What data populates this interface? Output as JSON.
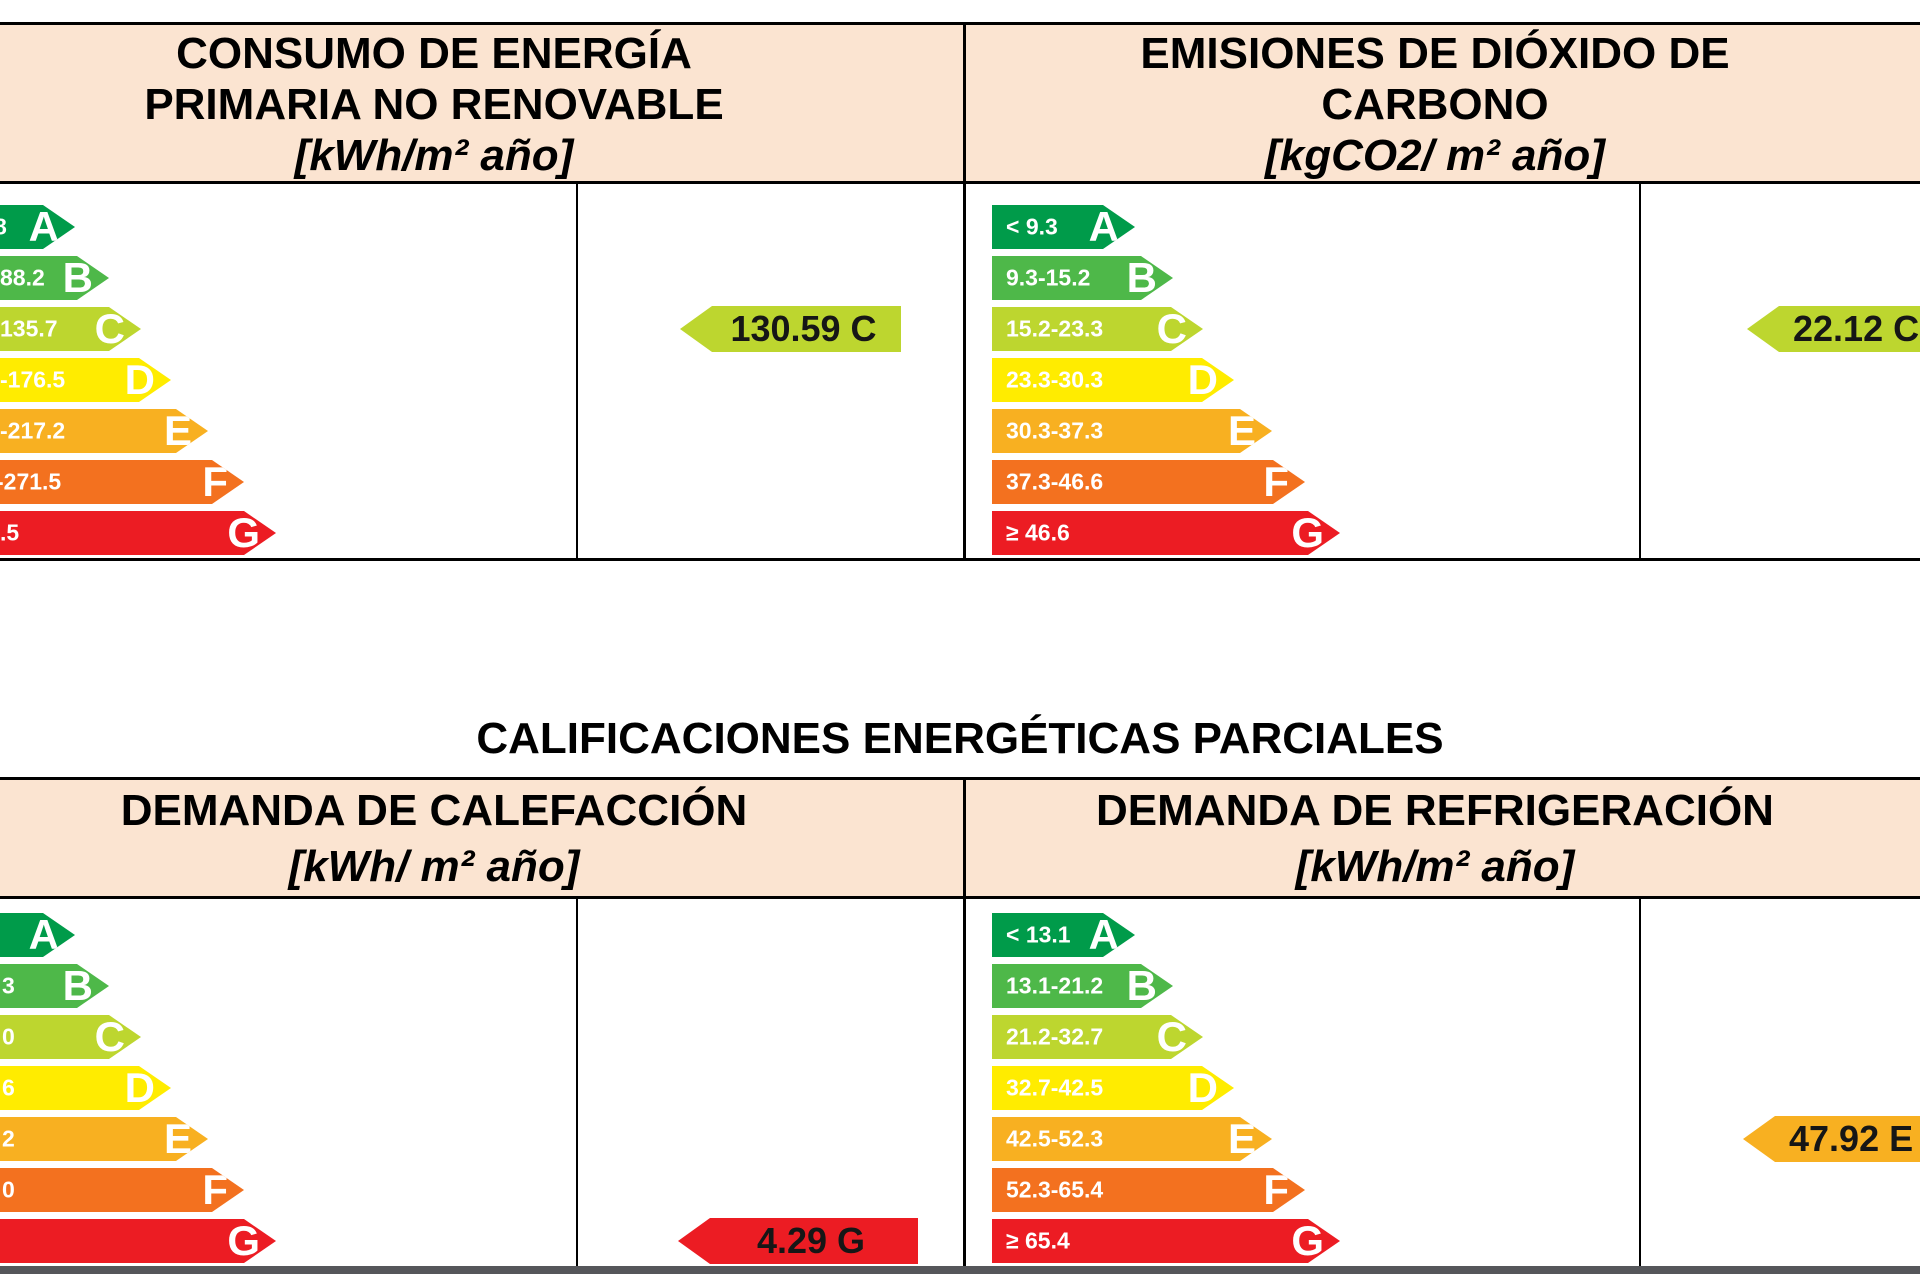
{
  "colors": {
    "ratings": {
      "A": "#009B4A",
      "B": "#4EB849",
      "C": "#BDD62F",
      "D": "#FFEC00",
      "E": "#F8B021",
      "F": "#F3711F",
      "G": "#EC1C23"
    },
    "header_bg": "#FBE4D1",
    "bottom_bar": "#55565A",
    "border": "#000000"
  },
  "top_table": {
    "left_panel": {
      "title_lines": [
        "CONSUMO DE ENERGÍA",
        "PRIMARIA NO RENOVABLE"
      ],
      "units": "[kWh/m² año]",
      "scale": [
        {
          "letter": "A",
          "label": "8"
        },
        {
          "letter": "B",
          "label": "88.2"
        },
        {
          "letter": "C",
          "label": "135.7"
        },
        {
          "letter": "D",
          "label": "-176.5"
        },
        {
          "letter": "E",
          "label": "-217.2"
        },
        {
          "letter": "F",
          "label": "-271.5"
        },
        {
          "letter": "G",
          "label": ".5"
        }
      ],
      "value_marker": {
        "text": "130.59 C",
        "rating": "C"
      }
    },
    "right_panel": {
      "title_lines": [
        "EMISIONES DE DIÓXIDO DE",
        "CARBONO"
      ],
      "units": "[kgCO2/ m² año]",
      "scale": [
        {
          "letter": "A",
          "label": "< 9.3"
        },
        {
          "letter": "B",
          "label": "9.3-15.2"
        },
        {
          "letter": "C",
          "label": "15.2-23.3"
        },
        {
          "letter": "D",
          "label": "23.3-30.3"
        },
        {
          "letter": "E",
          "label": "30.3-37.3"
        },
        {
          "letter": "F",
          "label": "37.3-46.6"
        },
        {
          "letter": "G",
          "label": "≥ 46.6"
        }
      ],
      "value_marker": {
        "text": "22.12 C",
        "rating": "C"
      }
    }
  },
  "section_title": "CALIFICACIONES ENERGÉTICAS PARCIALES",
  "bottom_table": {
    "left_panel": {
      "title_lines": [
        "DEMANDA DE CALEFACCIÓN"
      ],
      "units": "[kWh/ m² año]",
      "scale": [
        {
          "letter": "A",
          "label": ""
        },
        {
          "letter": "B",
          "label": "3"
        },
        {
          "letter": "C",
          "label": "0"
        },
        {
          "letter": "D",
          "label": "6"
        },
        {
          "letter": "E",
          "label": "2"
        },
        {
          "letter": "F",
          "label": "0"
        },
        {
          "letter": "G",
          "label": ""
        }
      ],
      "value_marker": {
        "text": "4.29 G",
        "rating": "G"
      }
    },
    "right_panel": {
      "title_lines": [
        "DEMANDA DE REFRIGERACIÓN"
      ],
      "units": "[kWh/m² año]",
      "scale": [
        {
          "letter": "A",
          "label": "< 13.1"
        },
        {
          "letter": "B",
          "label": "13.1-21.2"
        },
        {
          "letter": "C",
          "label": "21.2-32.7"
        },
        {
          "letter": "D",
          "label": "32.7-42.5"
        },
        {
          "letter": "E",
          "label": "42.5-52.3"
        },
        {
          "letter": "F",
          "label": "52.3-65.4"
        },
        {
          "letter": "G",
          "label": "≥ 65.4"
        }
      ],
      "value_marker": {
        "text": "47.92 E",
        "rating": "E"
      }
    }
  }
}
